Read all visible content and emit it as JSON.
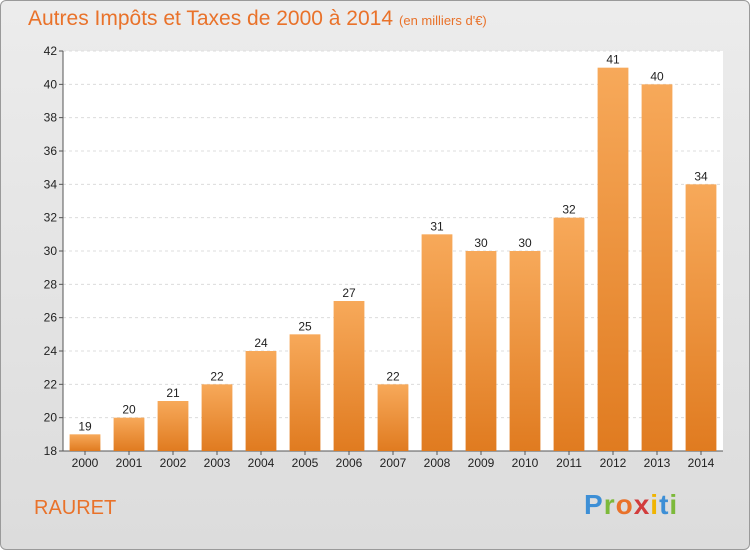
{
  "header": {
    "title": "Autres Impôts et Taxes de 2000 à 2014",
    "unit": "(en milliers d'€)"
  },
  "commune": "RAURET",
  "logo": {
    "letters": [
      "P",
      "r",
      "o",
      "x",
      "i",
      "t",
      "i"
    ],
    "colors": [
      "#3d8fd6",
      "#7cb93a",
      "#e9722a",
      "#d23c3c",
      "#f0b400",
      "#3d8fd6",
      "#7cb93a"
    ]
  },
  "colors": {
    "bar_top": "#f7a95a",
    "bar_bottom": "#e07b20",
    "accent": "#e9722a"
  },
  "chart_data": {
    "type": "bar",
    "categories": [
      "2000",
      "2001",
      "2002",
      "2003",
      "2004",
      "2005",
      "2006",
      "2007",
      "2008",
      "2009",
      "2010",
      "2011",
      "2012",
      "2013",
      "2014"
    ],
    "values": [
      19,
      20,
      21,
      22,
      24,
      25,
      27,
      22,
      31,
      30,
      30,
      32,
      41,
      40,
      34
    ],
    "ylim": [
      18,
      42
    ],
    "yticks": [
      18,
      20,
      22,
      24,
      26,
      28,
      30,
      32,
      34,
      36,
      38,
      40,
      42
    ],
    "grid": true,
    "title": "Autres Impôts et Taxes de 2000 à 2014",
    "xlabel": "",
    "ylabel": ""
  }
}
